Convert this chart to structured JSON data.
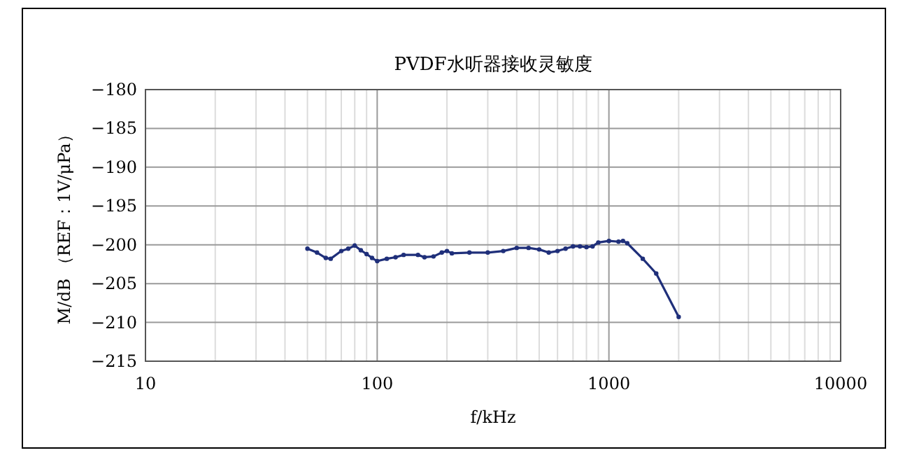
{
  "chart_data": {
    "type": "line",
    "title": "PVDF水听器接收灵敏度",
    "xlabel": "f/kHz",
    "ylabel": "M/dB （REF：1V/μPa）",
    "log": "x",
    "xlim": [
      10,
      10000
    ],
    "xticks": [
      10,
      100,
      1000,
      10000
    ],
    "ylim": [
      -215,
      -180
    ],
    "yticks": [
      -215,
      -210,
      -205,
      -200,
      -195,
      -190,
      -185,
      -180
    ],
    "grid": true,
    "marker": "circle",
    "line_style": "solid",
    "series": [
      {
        "color": "#1f2f7a",
        "x": [
          50,
          55,
          60,
          63,
          70,
          75,
          80,
          85,
          90,
          95,
          100,
          110,
          120,
          130,
          150,
          160,
          175,
          190,
          200,
          210,
          250,
          300,
          350,
          400,
          450,
          500,
          550,
          600,
          650,
          700,
          750,
          800,
          850,
          900,
          1000,
          1100,
          1150,
          1200,
          1400,
          1600,
          2000
        ],
        "values": [
          -200.5,
          -201,
          -201.7,
          -201.8,
          -200.8,
          -200.5,
          -200.1,
          -200.7,
          -201.2,
          -201.7,
          -202.1,
          -201.8,
          -201.6,
          -201.3,
          -201.3,
          -201.6,
          -201.5,
          -201,
          -200.8,
          -201.1,
          -201,
          -201,
          -200.8,
          -200.4,
          -200.4,
          -200.6,
          -201,
          -200.8,
          -200.5,
          -200.2,
          -200.2,
          -200.3,
          -200.2,
          -199.7,
          -199.5,
          -199.6,
          -199.5,
          -199.8,
          -201.8,
          -203.7,
          -209.3
        ]
      }
    ]
  }
}
